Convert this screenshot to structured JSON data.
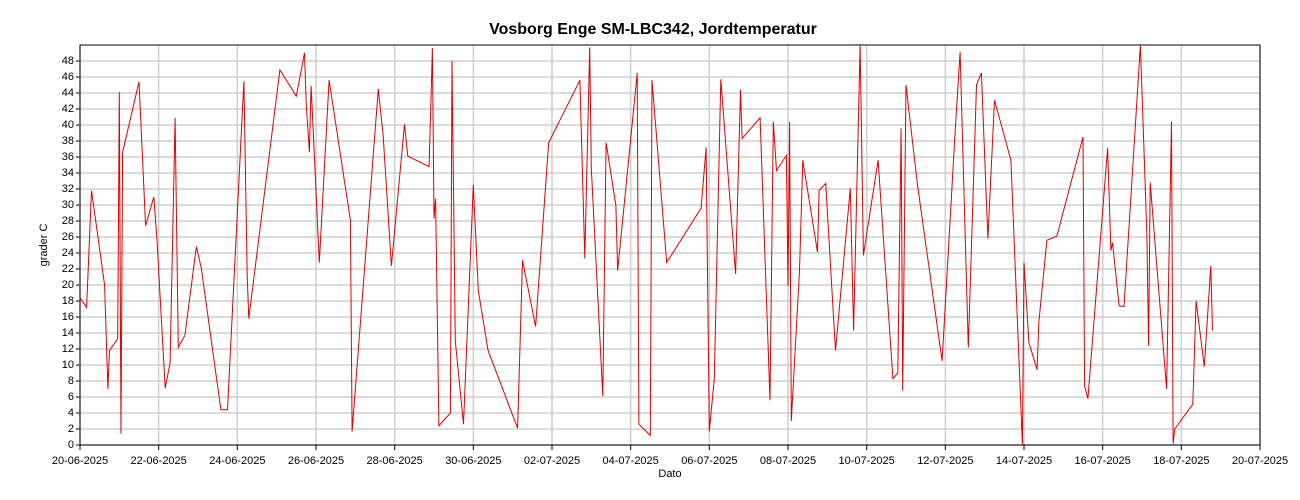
{
  "chart_data": {
    "type": "line",
    "title": "Vosborg Enge SM-LBC342, Jordtemperatur",
    "xlabel": "Dato",
    "ylabel": "grader C",
    "color": "#e00000",
    "grid": true,
    "xlim": [
      "2025-06-20",
      "2025-07-20"
    ],
    "xticks": [
      {
        "value": "2025-06-20",
        "label": "20-06-2025"
      },
      {
        "value": "2025-06-22",
        "label": "22-06-2025"
      },
      {
        "value": "2025-06-24",
        "label": "24-06-2025"
      },
      {
        "value": "2025-06-26",
        "label": "26-06-2025"
      },
      {
        "value": "2025-06-28",
        "label": "28-06-2025"
      },
      {
        "value": "2025-06-30",
        "label": "30-06-2025"
      },
      {
        "value": "2025-07-02",
        "label": "02-07-2025"
      },
      {
        "value": "2025-07-04",
        "label": "04-07-2025"
      },
      {
        "value": "2025-07-06",
        "label": "06-07-2025"
      },
      {
        "value": "2025-07-08",
        "label": "08-07-2025"
      },
      {
        "value": "2025-07-10",
        "label": "10-07-2025"
      },
      {
        "value": "2025-07-12",
        "label": "12-07-2025"
      },
      {
        "value": "2025-07-14",
        "label": "14-07-2025"
      },
      {
        "value": "2025-07-16",
        "label": "16-07-2025"
      },
      {
        "value": "2025-07-18",
        "label": "18-07-2025"
      },
      {
        "value": "2025-07-20",
        "label": "20-07-2025"
      }
    ],
    "ylim": [
      0,
      50
    ],
    "yticks": [
      0,
      2,
      4,
      6,
      8,
      10,
      12,
      14,
      16,
      18,
      20,
      22,
      24,
      26,
      28,
      30,
      32,
      34,
      36,
      38,
      40,
      42,
      44,
      46,
      48
    ],
    "x": [
      "2025-06-20 00:00",
      "2025-06-20 04:00",
      "2025-06-20 07:00",
      "2025-06-20 15:00",
      "2025-06-20 17:00",
      "2025-06-20 18:00",
      "2025-06-20 23:00",
      "2025-06-21 00:00",
      "2025-06-21 01:00",
      "2025-06-21 02:00",
      "2025-06-21 12:00",
      "2025-06-21 16:00",
      "2025-06-21 21:00",
      "2025-06-21 23:00",
      "2025-06-22 04:00",
      "2025-06-22 07:00",
      "2025-06-22 10:00",
      "2025-06-22 12:00",
      "2025-06-22 16:00",
      "2025-06-22 23:00",
      "2025-06-23 02:00",
      "2025-06-23 14:00",
      "2025-06-23 18:00",
      "2025-06-24 04:00",
      "2025-06-24 06:00",
      "2025-06-24 07:00",
      "2025-06-25 02:00",
      "2025-06-25 12:00",
      "2025-06-25 17:00",
      "2025-06-25 18:00",
      "2025-06-25 20:00",
      "2025-06-25 21:00",
      "2025-06-26 02:00",
      "2025-06-26 08:00",
      "2025-06-26 21:00",
      "2025-06-26 22:00",
      "2025-06-27 14:00",
      "2025-06-27 17:00",
      "2025-06-27 22:00",
      "2025-06-28 06:00",
      "2025-06-28 08:00",
      "2025-06-28 21:00",
      "2025-06-28 23:00",
      "2025-06-29 00:00",
      "2025-06-29 01:00",
      "2025-06-29 03:00",
      "2025-06-29 10:00",
      "2025-06-29 11:00",
      "2025-06-29 13:00",
      "2025-06-29 18:00",
      "2025-06-30 00:00",
      "2025-06-30 03:00",
      "2025-06-30 09:00",
      "2025-07-01 03:00",
      "2025-07-01 06:00",
      "2025-07-01 14:00",
      "2025-07-01 22:00",
      "2025-07-02 17:00",
      "2025-07-02 20:00",
      "2025-07-02 23:00",
      "2025-07-03 00:00",
      "2025-07-03 07:00",
      "2025-07-03 09:00",
      "2025-07-03 15:00",
      "2025-07-03 16:00",
      "2025-07-03 20:00",
      "2025-07-04 04:00",
      "2025-07-04 05:00",
      "2025-07-04 12:00",
      "2025-07-04 13:00",
      "2025-07-04 22:00",
      "2025-07-05 19:00",
      "2025-07-05 22:00",
      "2025-07-06 00:00",
      "2025-07-06 03:00",
      "2025-07-06 07:00",
      "2025-07-06 16:00",
      "2025-07-06 19:00",
      "2025-07-06 20:00",
      "2025-07-07 07:00",
      "2025-07-07 13:00",
      "2025-07-07 15:00",
      "2025-07-07 17:00",
      "2025-07-07 23:00",
      "2025-07-08 00:00",
      "2025-07-08 01:00",
      "2025-07-08 02:00",
      "2025-07-08 07:00",
      "2025-07-08 09:00",
      "2025-07-08 18:00",
      "2025-07-08 19:00",
      "2025-07-08 23:00",
      "2025-07-09 05:00",
      "2025-07-09 14:00",
      "2025-07-09 16:00",
      "2025-07-09 20:00",
      "2025-07-09 22:00",
      "2025-07-10 07:00",
      "2025-07-10 16:00",
      "2025-07-10 19:00",
      "2025-07-10 21:00",
      "2025-07-10 22:00",
      "2025-07-11 00:00",
      "2025-07-11 07:00",
      "2025-07-11 22:00",
      "2025-07-12 06:00",
      "2025-07-12 09:00",
      "2025-07-12 14:00",
      "2025-07-12 19:00",
      "2025-07-12 22:00",
      "2025-07-13 02:00",
      "2025-07-13 06:00",
      "2025-07-13 16:00",
      "2025-07-13 23:00",
      "2025-07-14 00:00",
      "2025-07-14 03:00",
      "2025-07-14 08:00",
      "2025-07-14 09:00",
      "2025-07-14 14:00",
      "2025-07-14 20:00",
      "2025-07-15 12:00",
      "2025-07-15 13:00",
      "2025-07-15 15:00",
      "2025-07-16 03:00",
      "2025-07-16 05:00",
      "2025-07-16 06:00",
      "2025-07-16 10:00",
      "2025-07-16 13:00",
      "2025-07-16 23:00",
      "2025-07-17 03:00",
      "2025-07-17 04:00",
      "2025-07-17 05:00",
      "2025-07-17 15:00",
      "2025-07-17 18:00",
      "2025-07-17 19:00",
      "2025-07-17 20:00",
      "2025-07-18 07:00",
      "2025-07-18 09:00",
      "2025-07-18 14:00",
      "2025-07-18 18:00",
      "2025-07-18 19:00"
    ],
    "values": [
      18.4,
      17.2,
      31.8,
      20,
      7,
      11.8,
      13.3,
      44.1,
      1.4,
      36.6,
      45.4,
      27.4,
      31,
      25.6,
      7.1,
      10.3,
      40.9,
      12.2,
      13.7,
      24.8,
      22.1,
      4.4,
      4.4,
      45.5,
      21.2,
      15.8,
      46.9,
      43.6,
      49,
      42.7,
      36.6,
      44.9,
      22.8,
      45.6,
      28.1,
      1.7,
      44.5,
      38.6,
      22.4,
      40.1,
      36.1,
      34.8,
      49.6,
      28.3,
      30.8,
      2.4,
      4,
      48,
      13,
      2.6,
      32.5,
      19.3,
      11.8,
      2.1,
      23.1,
      14.8,
      37.8,
      45.6,
      23.3,
      49.7,
      34.6,
      6.1,
      37.8,
      29.9,
      21.8,
      29.9,
      46.5,
      2.6,
      1.2,
      45.6,
      22.8,
      29.6,
      37.2,
      1.7,
      8.3,
      45.7,
      21.4,
      44.4,
      38.3,
      40.9,
      5.6,
      40.4,
      34.3,
      36.2,
      19.9,
      40.4,
      3,
      21.8,
      35.6,
      24.1,
      31.8,
      32.7,
      11.8,
      32.1,
      14.3,
      50,
      23.7,
      35.6,
      8.3,
      9,
      39.6,
      6.8,
      45,
      32.5,
      10.5,
      39.3,
      49.1,
      12.2,
      45,
      46.5,
      25.8,
      43.1,
      35.6,
      0,
      22.8,
      12.8,
      9.4,
      15.3,
      25.6,
      26.1,
      38.5,
      7.4,
      5.8,
      37.1,
      24.3,
      25.3,
      17.4,
      17.3,
      50,
      26.2,
      12.4,
      32.8,
      7,
      40.4,
      0.2,
      2,
      5.1,
      18,
      9.8,
      22.4,
      14.3
    ]
  }
}
